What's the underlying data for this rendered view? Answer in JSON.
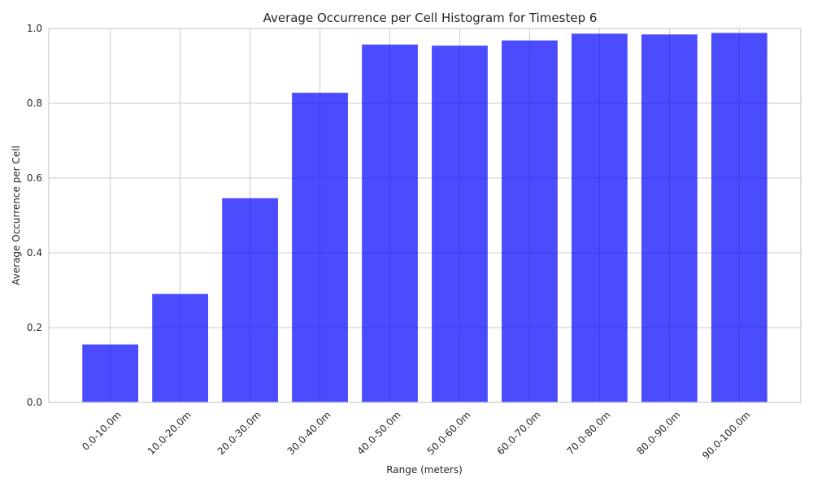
{
  "chart_data": {
    "type": "bar",
    "title": "Average Occurrence per Cell Histogram for Timestep 6",
    "xlabel": "Range (meters)",
    "ylabel": "Average Occurrence per Cell",
    "categories": [
      "0.0-10.0m",
      "10.0-20.0m",
      "20.0-30.0m",
      "30.0-40.0m",
      "40.0-50.0m",
      "50.0-60.0m",
      "60.0-70.0m",
      "70.0-80.0m",
      "80.0-90.0m",
      "90.0-100.0m"
    ],
    "values": [
      0.155,
      0.29,
      0.546,
      0.828,
      0.957,
      0.954,
      0.968,
      0.986,
      0.984,
      0.988
    ],
    "ylim": [
      0,
      1.0
    ],
    "yticks": [
      "0.0",
      "0.2",
      "0.4",
      "0.6",
      "0.8",
      "1.0"
    ],
    "grid": true,
    "bar_color": "#0000ff",
    "bar_opacity": 0.7,
    "grid_color": "#cccccc",
    "spine_color": "#cccccc",
    "text_color": "#262626"
  }
}
